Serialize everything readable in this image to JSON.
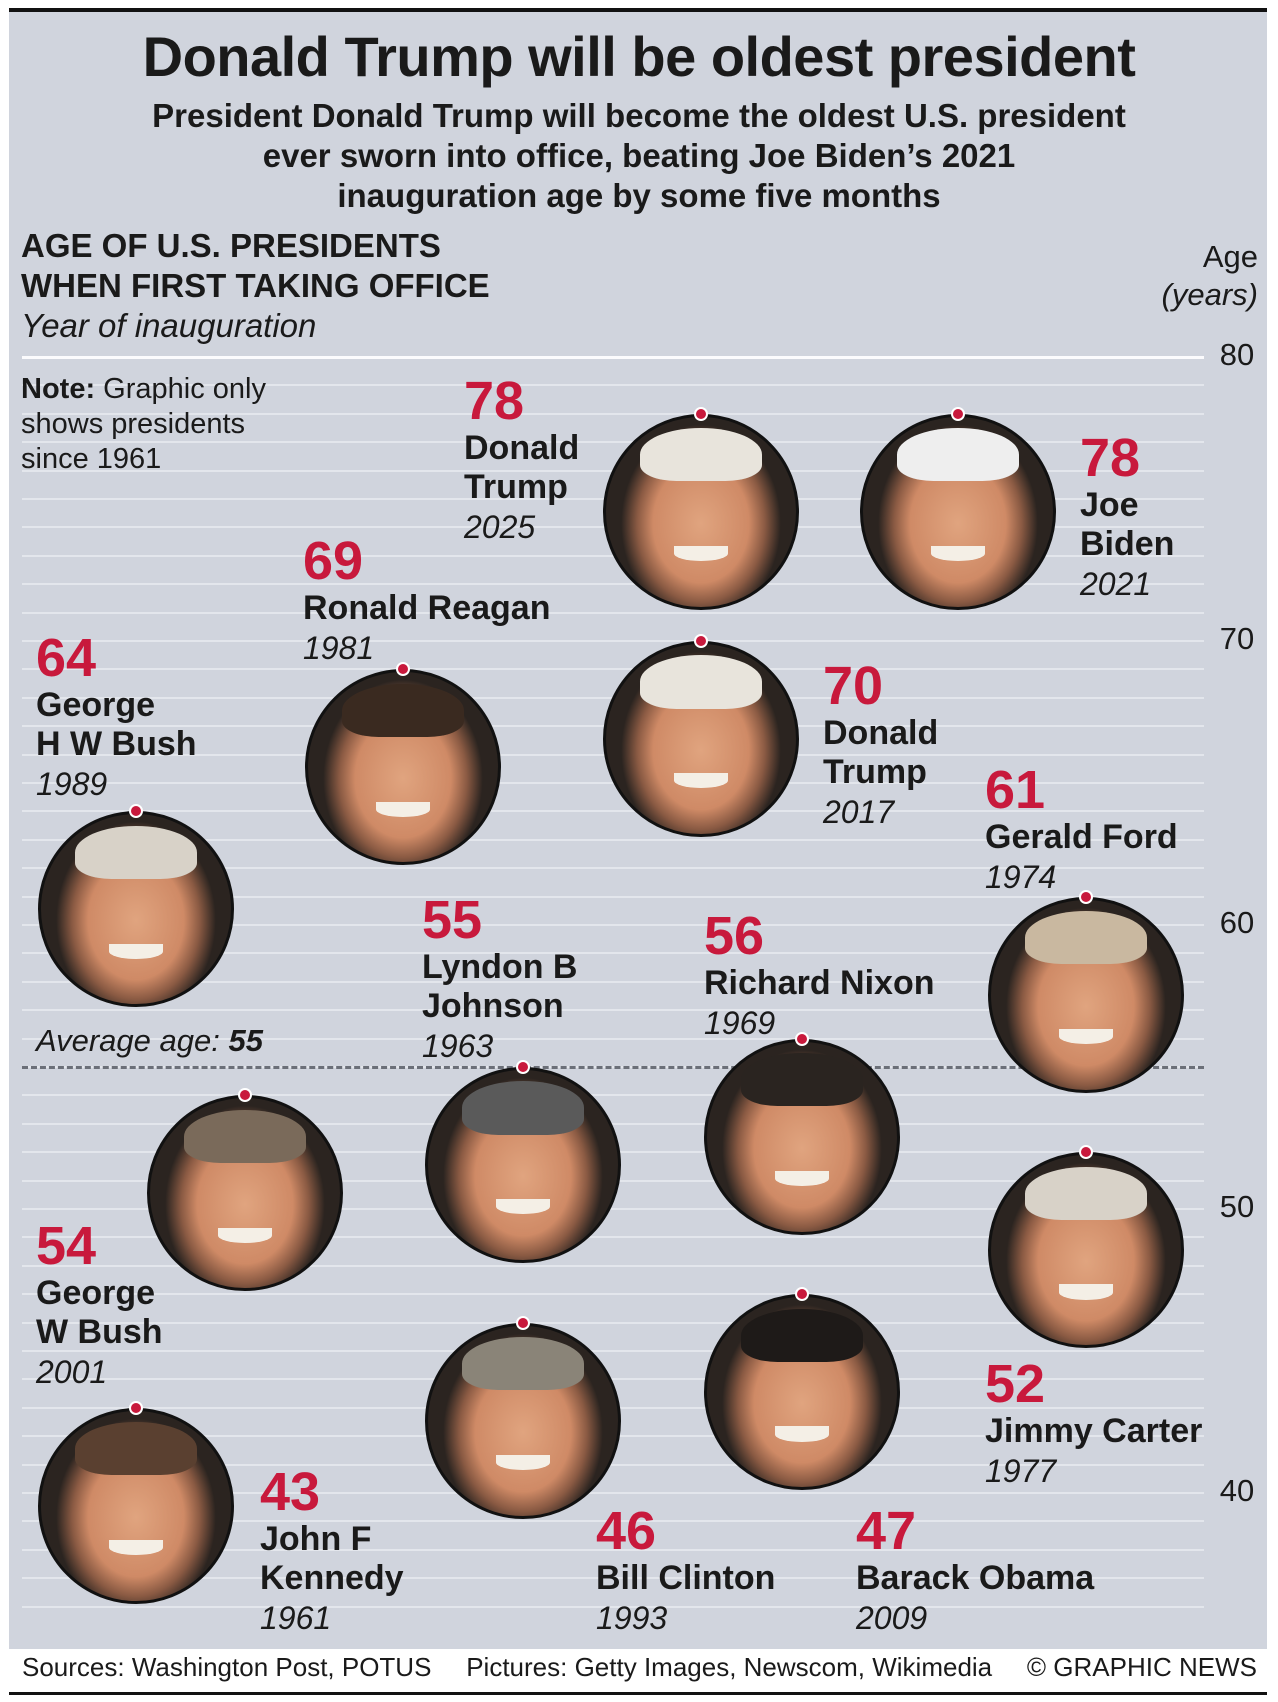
{
  "title": "Donald Trump will be oldest president",
  "subtitle": [
    "President Donald Trump will become the oldest U.S. president",
    "ever sworn into office, beating Joe Biden’s 2021",
    "inauguration age by some five months"
  ],
  "heading": {
    "line1": "AGE OF U.S. PRESIDENTS",
    "line2": "WHEN FIRST TAKING OFFICE",
    "line3": "Year of inauguration"
  },
  "note": {
    "bold": "Note:",
    "line1": " Graphic only",
    "line2": "shows presidents",
    "line3": "since 1961"
  },
  "average": {
    "label": "Average age: ",
    "value": "55"
  },
  "footer": {
    "sources": "Sources: Washington Post, POTUS",
    "pictures": "Pictures: Getty Images, Newscom, Wikimedia",
    "credit": "© GRAPHIC NEWS"
  },
  "colors": {
    "accent": "#c8193c",
    "background": "#d0d4dd"
  },
  "chart_data": {
    "type": "scatter",
    "title": "AGE OF U.S. PRESIDENTS WHEN FIRST TAKING OFFICE",
    "ylabel": "Age",
    "ylabel_unit": "(years)",
    "ylim": [
      36,
      80
    ],
    "yticks": [
      "80",
      "70",
      "60",
      "50",
      "40"
    ],
    "average_age": 55,
    "points": [
      {
        "age": "78",
        "name": [
          "Donald",
          "Trump"
        ],
        "year": "2025"
      },
      {
        "age": "78",
        "name": [
          "Joe",
          "Biden"
        ],
        "year": "2021"
      },
      {
        "age": "69",
        "name": [
          "Ronald Reagan"
        ],
        "year": "1981"
      },
      {
        "age": "70",
        "name": [
          "Donald",
          "Trump"
        ],
        "year": "2017"
      },
      {
        "age": "64",
        "name": [
          "George",
          "H W Bush"
        ],
        "year": "1989"
      },
      {
        "age": "61",
        "name": [
          "Gerald Ford"
        ],
        "year": "1974"
      },
      {
        "age": "55",
        "name": [
          "Lyndon B",
          "Johnson"
        ],
        "year": "1963"
      },
      {
        "age": "56",
        "name": [
          "Richard Nixon"
        ],
        "year": "1969"
      },
      {
        "age": "54",
        "name": [
          "George",
          "W Bush"
        ],
        "year": "2001"
      },
      {
        "age": "52",
        "name": [
          "Jimmy Carter"
        ],
        "year": "1977"
      },
      {
        "age": "43",
        "name": [
          "John F",
          "Kennedy"
        ],
        "year": "1961"
      },
      {
        "age": "46",
        "name": [
          "Bill Clinton"
        ],
        "year": "1993"
      },
      {
        "age": "47",
        "name": [
          "Barack Obama"
        ],
        "year": "2009"
      }
    ]
  }
}
